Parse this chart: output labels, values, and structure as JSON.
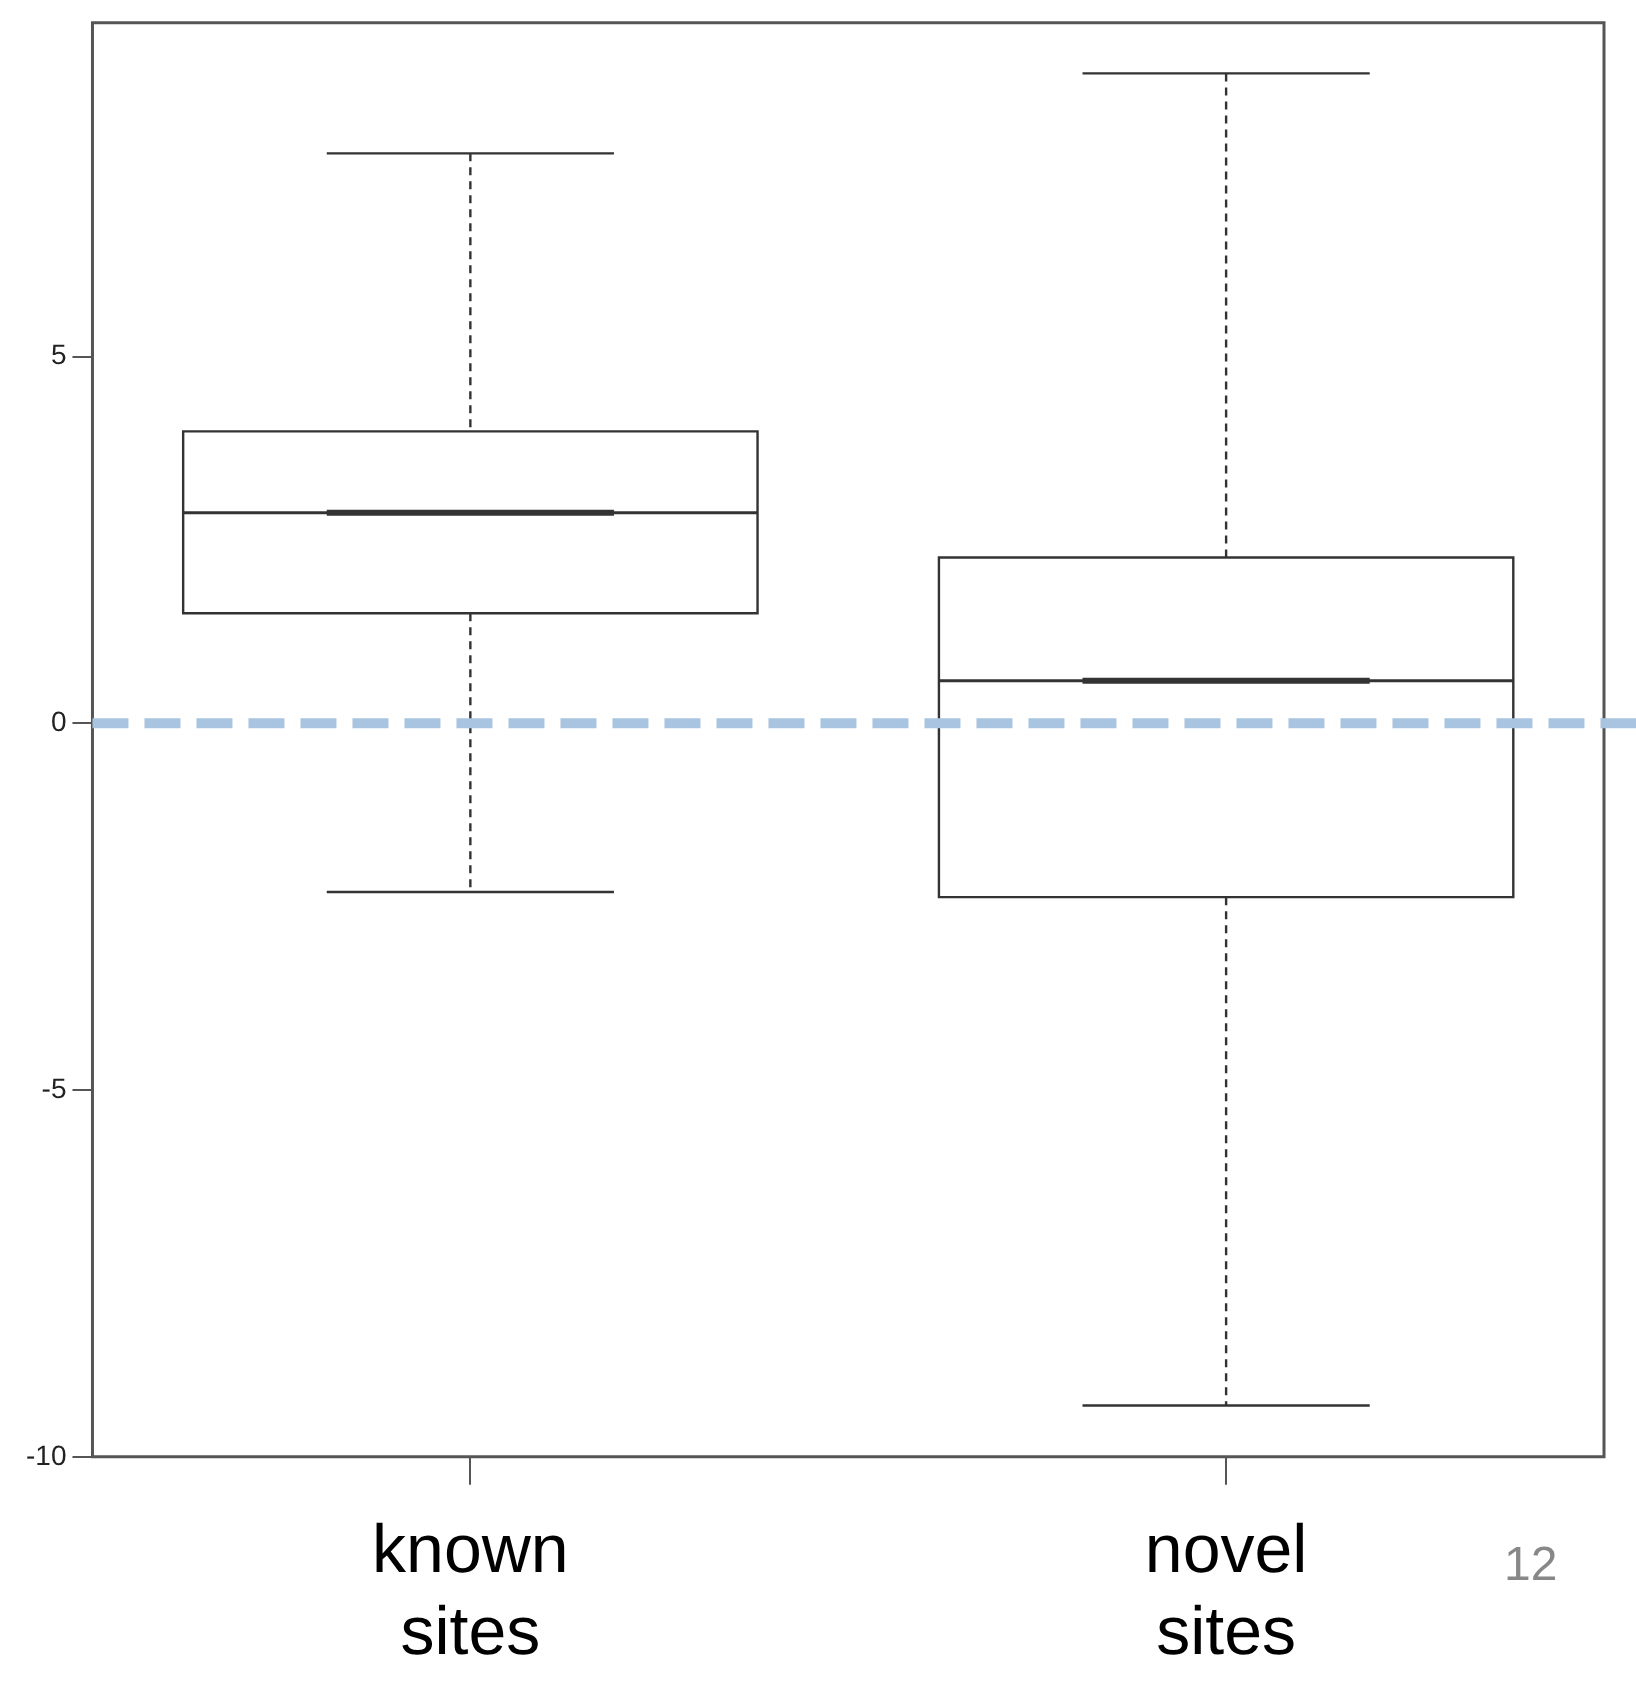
{
  "chart_data": {
    "type": "box",
    "categories": [
      "known sites",
      "novel sites"
    ],
    "boxes": [
      {
        "low": -2.3,
        "q1": 1.5,
        "median": 2.87,
        "q3": 3.98,
        "high": 7.77
      },
      {
        "low": -9.3,
        "q1": -2.37,
        "median": 0.58,
        "q3": 2.26,
        "high": 8.86
      }
    ],
    "ylim": [
      -10,
      9.55
    ],
    "yticks": [
      -10,
      -5,
      0,
      5
    ],
    "grid": false,
    "legend": false,
    "ref_lines": [
      {
        "axis": "y",
        "value": 0,
        "color": "#a9c4e0",
        "line_style": "dashed"
      }
    ],
    "annotations": [
      "12"
    ]
  }
}
